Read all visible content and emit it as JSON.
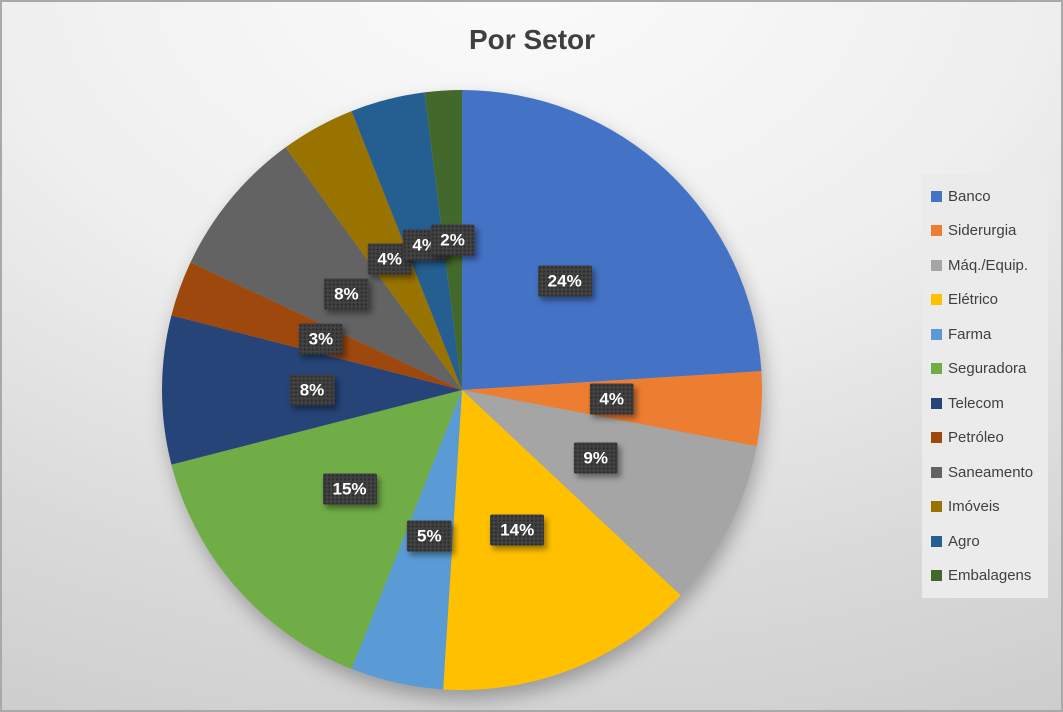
{
  "chart": {
    "title": "Por Setor"
  },
  "chart_data": {
    "type": "pie",
    "title": "Por Setor",
    "legend_position": "right",
    "label_format": "percent",
    "total": 100,
    "categories": [
      "Banco",
      "Siderurgia",
      "Máq./Equip.",
      "Elétrico",
      "Farma",
      "Seguradora",
      "Telecom",
      "Petróleo",
      "Saneamento",
      "Imóveis",
      "Agro",
      "Embalagens"
    ],
    "values": [
      24,
      4,
      9,
      14,
      5,
      15,
      8,
      3,
      8,
      4,
      4,
      2
    ],
    "data_labels": [
      "24%",
      "4%",
      "9%",
      "14%",
      "5%",
      "15%",
      "8%",
      "3%",
      "8%",
      "4%",
      "4%",
      "2%"
    ],
    "colors": [
      "#4472C4",
      "#ED7D31",
      "#A5A5A5",
      "#FFC000",
      "#5B9BD5",
      "#70AD47",
      "#264478",
      "#9E480E",
      "#636363",
      "#997300",
      "#255E91",
      "#43682B"
    ]
  },
  "colors": {
    "title_text": "#3f3f3f",
    "data_label_bg": "#424242",
    "data_label_text": "#ffffff",
    "legend_bg": "#ebebeb",
    "legend_text": "#404040",
    "canvas_border": "#a9a9a9"
  }
}
